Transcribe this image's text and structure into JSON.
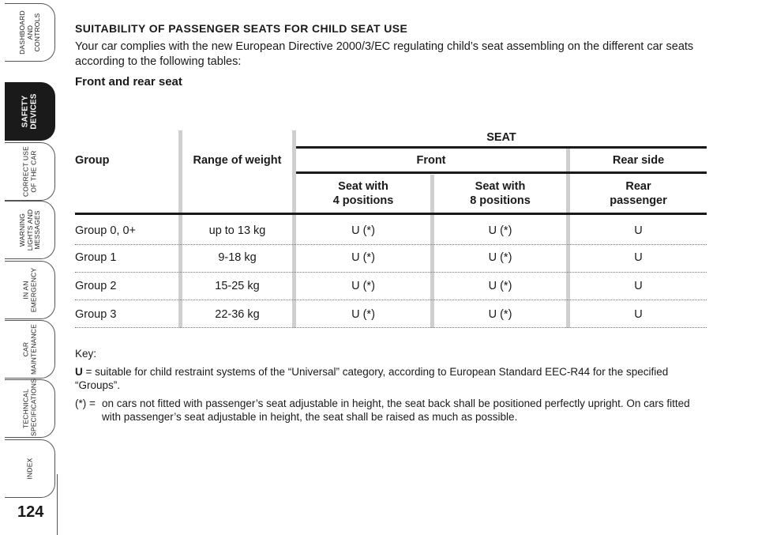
{
  "sidebar": {
    "tabs": [
      {
        "label": "DASHBOARD\nAND\nCONTROLS",
        "active": false
      },
      {
        "label": "SAFETY\nDEVICES",
        "active": true
      },
      {
        "label": "CORRECT USE\nOF THE CAR",
        "active": false
      },
      {
        "label": "WARNING\nLIGHTS AND\nMESSAGES",
        "active": false
      },
      {
        "label": "IN AN\nEMERGENCY",
        "active": false
      },
      {
        "label": "CAR\nMAINTENANCE",
        "active": false
      },
      {
        "label": "TECHNICAL\nSPECIFICATIONS",
        "active": false
      },
      {
        "label": "INDEX",
        "active": false
      }
    ]
  },
  "page_number": "124",
  "content": {
    "title": "SUITABILITY OF PASSENGER SEATS FOR CHILD SEAT USE",
    "intro": "Your car complies with the new European Directive 2000/3/EC regulating child’s seat assembling on the different car seats according to the following tables:",
    "subtitle": "Front and rear seat"
  },
  "table": {
    "header_group": "Group",
    "header_weight": "Range of weight",
    "header_seat": "SEAT",
    "header_front": "Front",
    "header_rear_side": "Rear side",
    "col_seat4": "Seat with\n4 positions",
    "col_seat8": "Seat with\n8 positions",
    "col_rear": "Rear\npassenger",
    "rows": [
      {
        "group": "Group 0, 0+",
        "weight": "up to 13 kg",
        "seat4": "U (*)",
        "seat8": "U (*)",
        "rear": "U"
      },
      {
        "group": "Group 1",
        "weight": "9-18 kg",
        "seat4": "U (*)",
        "seat8": "U (*)",
        "rear": "U"
      },
      {
        "group": "Group 2",
        "weight": "15-25 kg",
        "seat4": "U (*)",
        "seat8": "U (*)",
        "rear": "U"
      },
      {
        "group": "Group 3",
        "weight": "22-36 kg",
        "seat4": "U (*)",
        "seat8": "U (*)",
        "rear": "U"
      }
    ]
  },
  "key": {
    "label": "Key:",
    "u_letter": "U",
    "u_text": " = suitable for child restraint systems of the “Universal” category, according to European Standard EEC-R44 for the specified “Groups”.",
    "fn_mark": "(*) =",
    "fn_text": "on cars not fitted with passenger’s seat adjustable in height, the seat back shall be positioned perfectly upright. On cars fitted with passenger’s seat adjustable in height, the seat shall be raised as much as possible."
  }
}
